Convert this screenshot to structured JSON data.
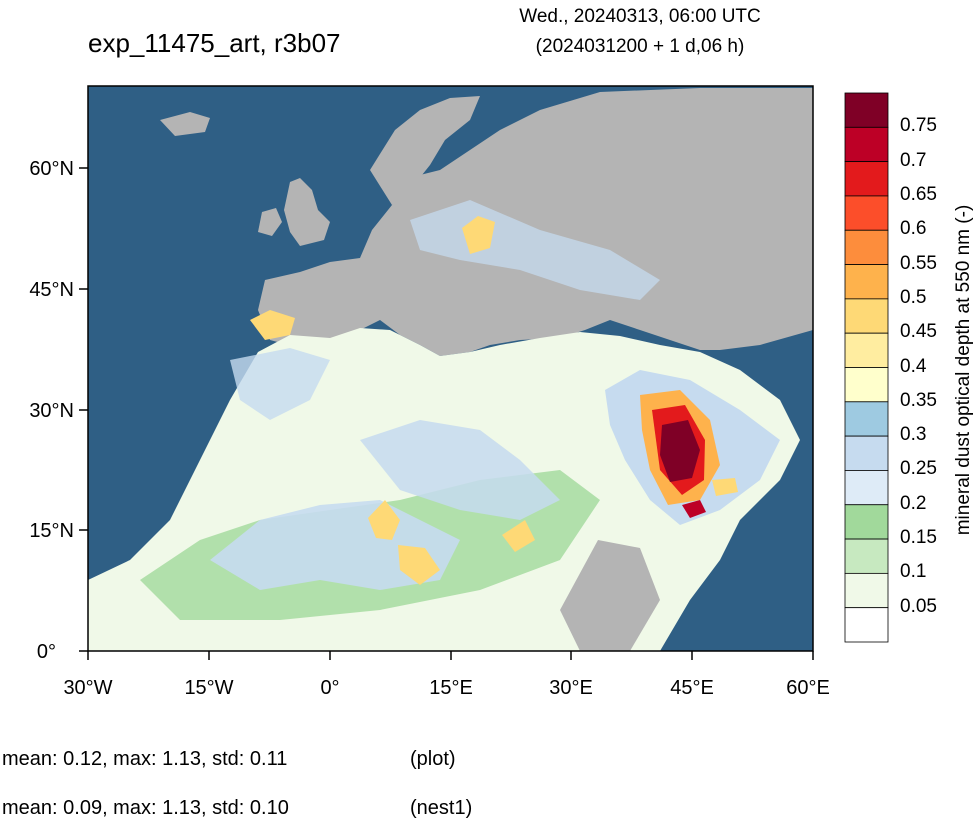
{
  "title": "exp_11475_art, r3b07",
  "valid_time": "Wed., 20240313, 06:00 UTC",
  "init_info": "(2024031200 + 1 d,06 h)",
  "axes": {
    "lon_ticks": [
      "30°W",
      "15°W",
      "0°",
      "15°E",
      "30°E",
      "45°E",
      "60°E"
    ],
    "lat_ticks": [
      "60°N",
      "45°N",
      "30°N",
      "15°N",
      "0°"
    ]
  },
  "colorbar": {
    "title": "mineral dust optical depth at 550 nm (-)",
    "labels": [
      "0.75",
      "0.7",
      "0.65",
      "0.6",
      "0.55",
      "0.5",
      "0.45",
      "0.4",
      "0.35",
      "0.3",
      "0.25",
      "0.2",
      "0.15",
      "0.1",
      "0.05"
    ],
    "colors": [
      "#7f0026",
      "#bd0026",
      "#e31a1c",
      "#fc4e2a",
      "#fd8d3c",
      "#feb24c",
      "#fed976",
      "#ffeda0",
      "#ffffcc",
      "#9ecae1",
      "#c6dbef",
      "#deebf7",
      "#a1d99b",
      "#c7e9c0",
      "#f0f9e8",
      "#ffffff"
    ]
  },
  "map_colors": {
    "ocean": "#2f5f85",
    "land_masked": "#b4b4b4"
  },
  "stats": [
    {
      "text": "mean: 0.12, max: 1.13, std: 0.11",
      "tag": "(plot)"
    },
    {
      "text": "mean: 0.09, max: 1.13, std: 0.10",
      "tag": "(nest1)"
    }
  ]
}
